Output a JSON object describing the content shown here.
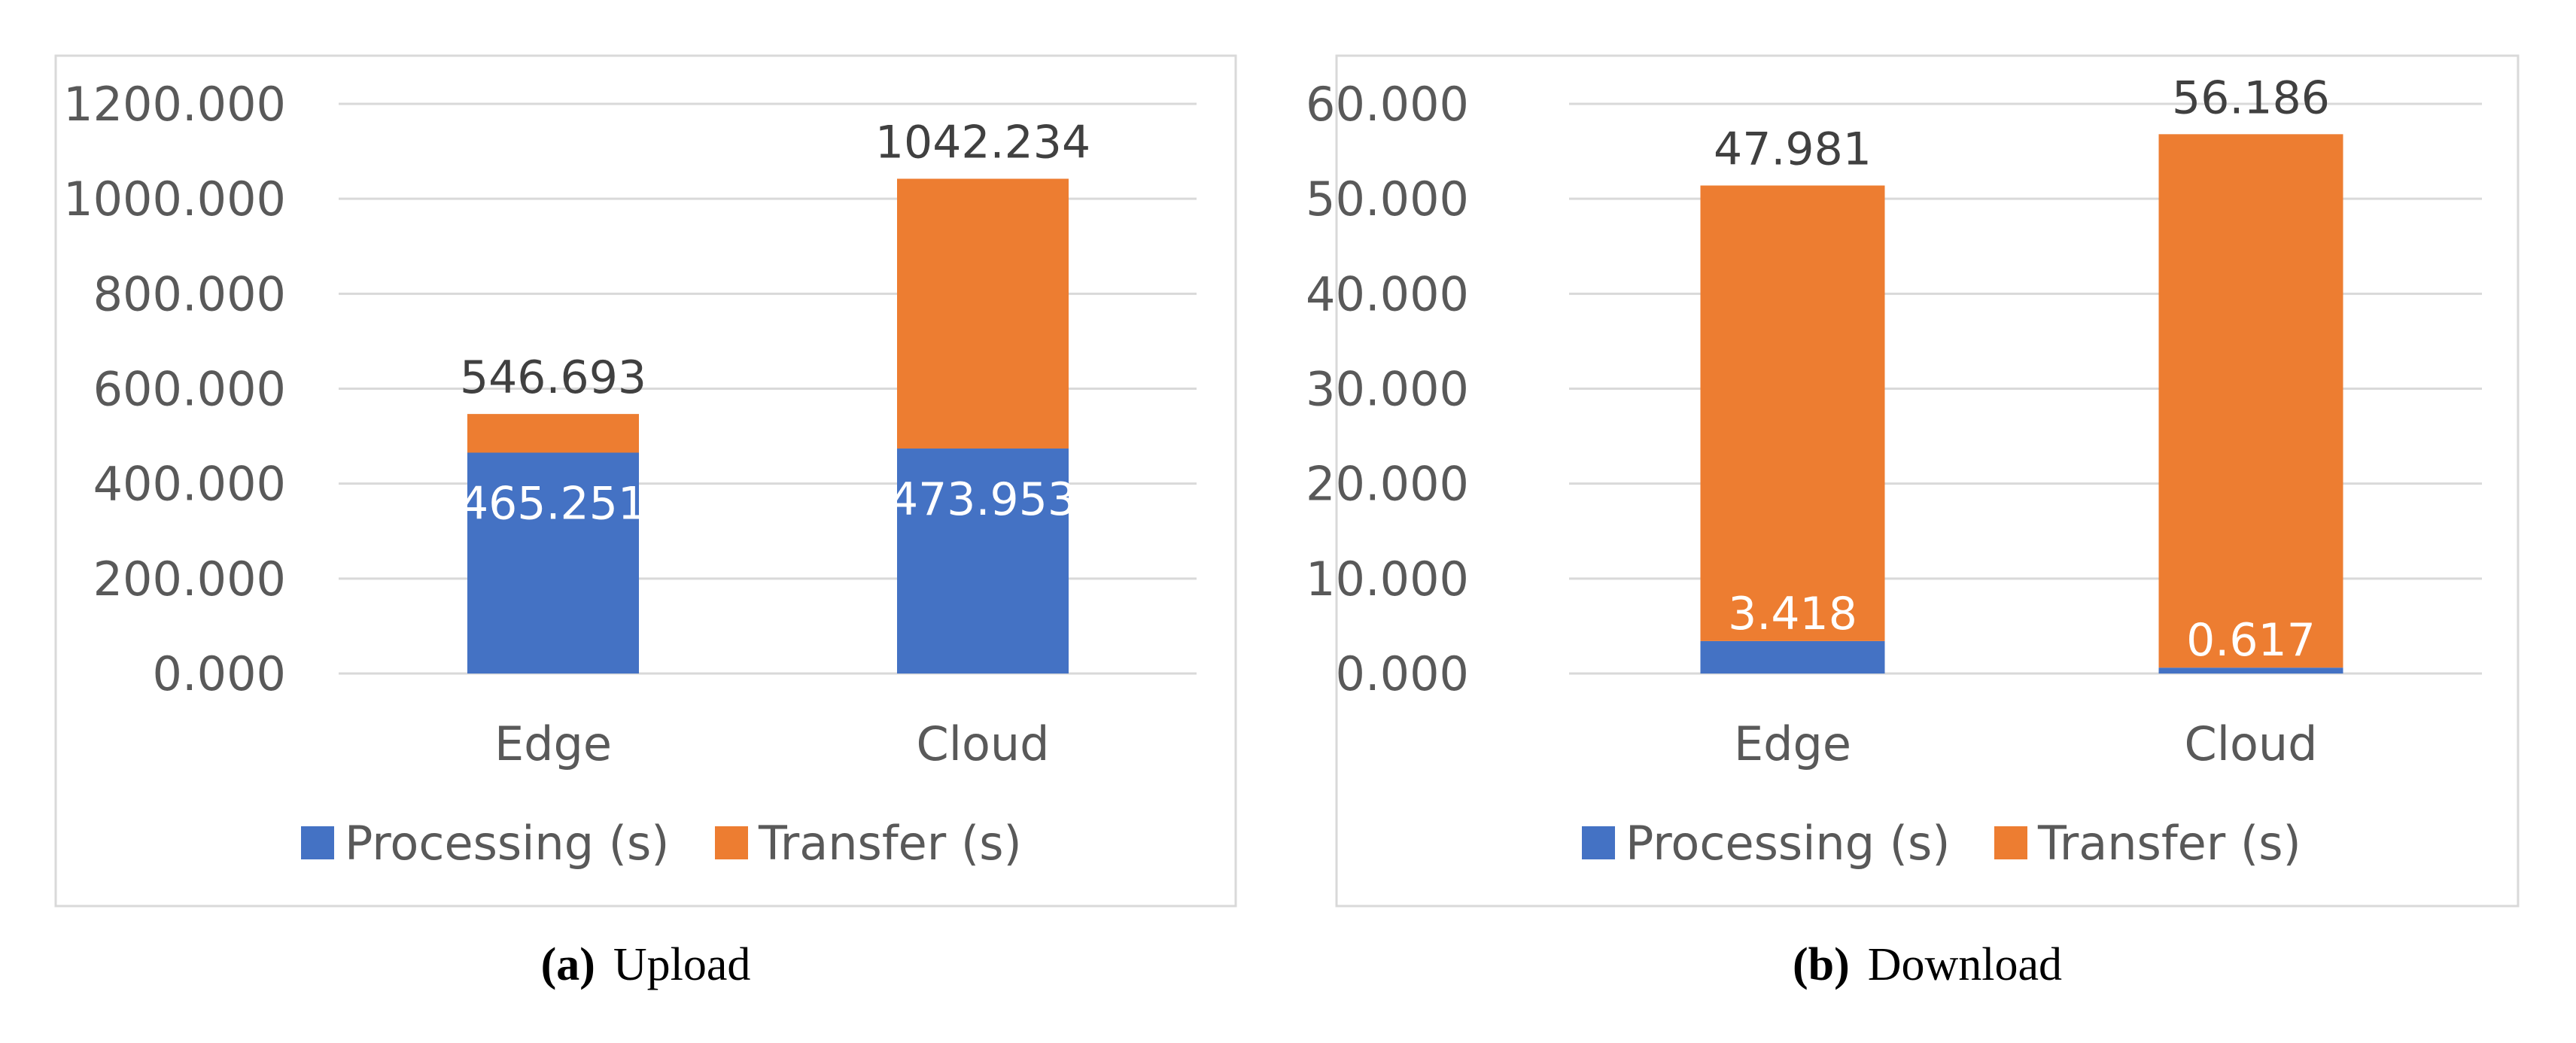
{
  "chart_data": [
    {
      "type": "bar",
      "stacked": true,
      "categories": [
        "Edge",
        "Cloud"
      ],
      "series": [
        {
          "name": "Processing (s)",
          "color": "#4472C4",
          "values": [
            465.251,
            473.953
          ]
        },
        {
          "name": "Transfer (s)",
          "color": "#ED7D31",
          "values": [
            81.442,
            568.281
          ]
        }
      ],
      "data_labels": {
        "processing": [
          "465.251",
          "473.953"
        ],
        "totals": [
          "546.693",
          "1042.234"
        ]
      },
      "yticks": [
        "0.000",
        "200.000",
        "400.000",
        "600.000",
        "800.000",
        "1000.000",
        "1200.000"
      ],
      "ylim": [
        0,
        1200
      ],
      "legend": "bottom",
      "grid": true,
      "caption_label": "(a)",
      "caption_text": "Upload"
    },
    {
      "type": "bar",
      "stacked": true,
      "categories": [
        "Edge",
        "Cloud"
      ],
      "series": [
        {
          "name": "Processing (s)",
          "color": "#4472C4",
          "values": [
            3.418,
            0.617
          ]
        },
        {
          "name": "Transfer (s)",
          "color": "#ED7D31",
          "values": [
            47.981,
            56.186
          ]
        }
      ],
      "data_labels": {
        "processing": [
          "3.418",
          "0.617"
        ],
        "transfer": [
          "47.981",
          "56.186"
        ]
      },
      "yticks": [
        "0.000",
        "10.000",
        "20.000",
        "30.000",
        "40.000",
        "50.000",
        "60.000"
      ],
      "ylim": [
        0,
        60
      ],
      "legend": "bottom",
      "grid": true,
      "caption_label": "(b)",
      "caption_text": "Download"
    }
  ],
  "colors": {
    "grid": "#D9D9D9",
    "frame": "#D9D9D9",
    "axis_text": "#595959",
    "label_dark": "#404040",
    "label_light": "#FFFFFF"
  }
}
